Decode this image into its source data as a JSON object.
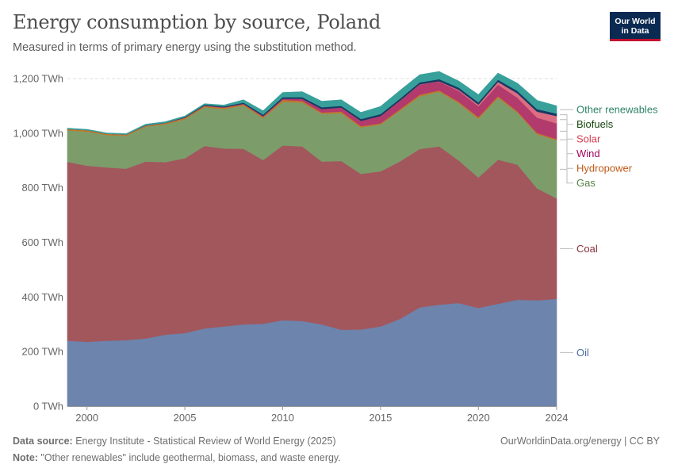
{
  "title": "Energy consumption by source, Poland",
  "subtitle": "Measured in terms of primary energy using the substitution method.",
  "logo": {
    "line1": "Our World",
    "line2": "in Data"
  },
  "footer": {
    "source_label": "Data source:",
    "source_text": "Energy Institute - Statistical Review of World Energy (2025)",
    "note_label": "Note:",
    "note_text": "\"Other renewables\" include geothermal, biomass, and waste energy.",
    "right_text": "OurWorldinData.org/energy | CC BY"
  },
  "chart_data": {
    "type": "area",
    "stacked": true,
    "x": [
      1999,
      2000,
      2001,
      2002,
      2003,
      2004,
      2005,
      2006,
      2007,
      2008,
      2009,
      2010,
      2011,
      2012,
      2013,
      2014,
      2015,
      2016,
      2017,
      2018,
      2019,
      2020,
      2021,
      2022,
      2023,
      2024
    ],
    "xticks": [
      "2000",
      "2005",
      "2010",
      "2015",
      "2020",
      "2024"
    ],
    "xtick_values": [
      2000,
      2005,
      2010,
      2015,
      2020,
      2024
    ],
    "ylim": [
      0,
      1200
    ],
    "yticks": [
      "0 TWh",
      "200 TWh",
      "400 TWh",
      "600 TWh",
      "800 TWh",
      "1,000 TWh",
      "1,200 TWh"
    ],
    "ytick_values": [
      0,
      200,
      400,
      600,
      800,
      1000,
      1200
    ],
    "grid": true,
    "legend_placement": "right-inline",
    "series": [
      {
        "name": "Oil",
        "color": "#6d84ad",
        "label_color": "#4d6a9c",
        "values": [
          240,
          236,
          240,
          242,
          248,
          262,
          268,
          285,
          292,
          300,
          302,
          315,
          312,
          300,
          280,
          281,
          292,
          320,
          362,
          372,
          378,
          360,
          375,
          390,
          388,
          393
        ]
      },
      {
        "name": "Coal",
        "color": "#a2575d",
        "label_color": "#883039",
        "values": [
          655,
          645,
          635,
          628,
          648,
          632,
          640,
          668,
          652,
          643,
          600,
          640,
          640,
          596,
          618,
          570,
          568,
          577,
          580,
          580,
          522,
          478,
          528,
          495,
          410,
          368
        ]
      },
      {
        "name": "Gas",
        "color": "#7c9d6a",
        "label_color": "#578145",
        "values": [
          115,
          125,
          118,
          120,
          128,
          138,
          143,
          142,
          144,
          158,
          153,
          160,
          160,
          175,
          175,
          170,
          172,
          186,
          193,
          200,
          210,
          215,
          227,
          190,
          198,
          213
        ]
      },
      {
        "name": "Hydropower",
        "color": "#c0782d",
        "label_color": "#be5915",
        "values": [
          5,
          5,
          5,
          5,
          4,
          5,
          5,
          5,
          5,
          5,
          5,
          7,
          6,
          5,
          6,
          5,
          4,
          5,
          6,
          5,
          5,
          6,
          6,
          5,
          5,
          4
        ]
      },
      {
        "name": "Wind",
        "color": "#b33a6d",
        "label_color": "#a2065b",
        "values": [
          0,
          0,
          0,
          0,
          0,
          0,
          1,
          1,
          2,
          2,
          3,
          4,
          8,
          12,
          15,
          19,
          27,
          32,
          37,
          32,
          40,
          40,
          42,
          50,
          56,
          58
        ]
      },
      {
        "name": "Solar",
        "color": "#db6e82",
        "label_color": "#d73c50",
        "values": [
          0,
          0,
          0,
          0,
          0,
          0,
          0,
          0,
          0,
          0,
          0,
          0,
          0,
          0,
          0,
          0,
          0,
          0,
          1,
          1,
          4,
          6,
          10,
          16,
          22,
          27
        ]
      },
      {
        "name": "Biofuels",
        "color": "#163a64",
        "label_color": "#18470f",
        "values": [
          0,
          0,
          0,
          0,
          1,
          1,
          2,
          3,
          3,
          4,
          5,
          6,
          6,
          7,
          6,
          7,
          7,
          7,
          7,
          8,
          8,
          8,
          8,
          9,
          9,
          9
        ]
      },
      {
        "name": "Other renewables",
        "color": "#38a09a",
        "label_color": "#2c8465",
        "values": [
          3,
          3,
          3,
          3,
          4,
          4,
          4,
          4,
          5,
          10,
          14,
          17,
          20,
          22,
          22,
          24,
          28,
          30,
          28,
          28,
          24,
          28,
          24,
          28,
          32,
          28
        ]
      }
    ]
  }
}
